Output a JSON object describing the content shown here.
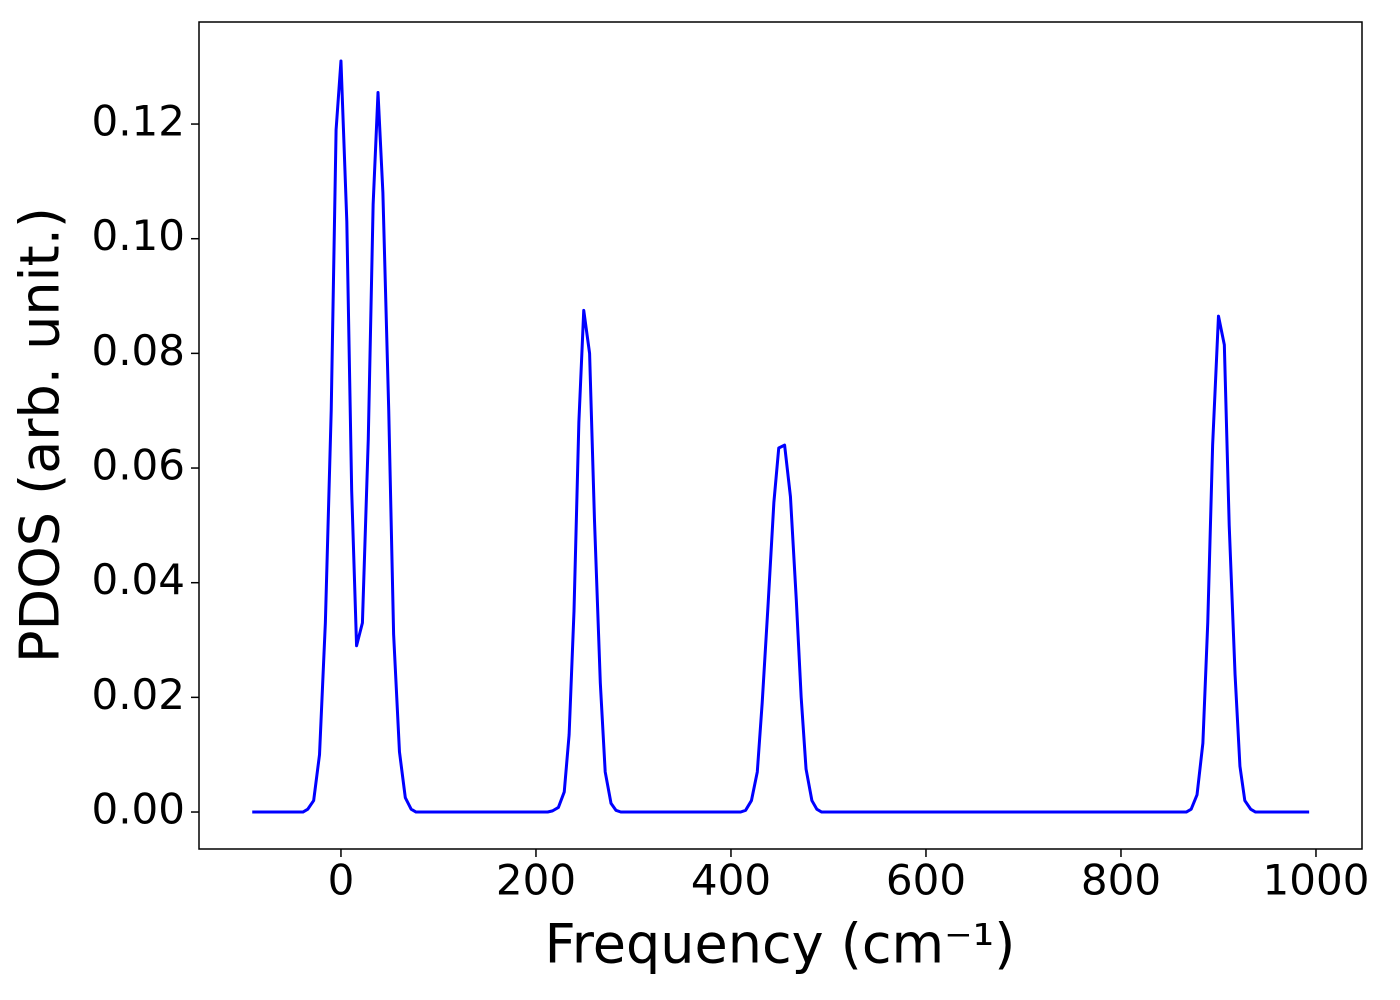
{
  "chart_data": {
    "type": "line",
    "x_label": "Frequency (cm⁻¹)",
    "y_label": "PDOS (arb. unit.)",
    "xlim": [
      -145.6,
      1047.2
    ],
    "ylim": [
      -0.00645,
      0.1378
    ],
    "xticks": [
      0,
      200,
      400,
      600,
      800,
      1000
    ],
    "yticks": [
      {
        "value": 0,
        "label": "0.00"
      },
      {
        "value": 0.02,
        "label": "0.02"
      },
      {
        "value": 0.04,
        "label": "0.04"
      },
      {
        "value": 0.06,
        "label": "0.06"
      },
      {
        "value": 0.08,
        "label": "0.08"
      },
      {
        "value": 0.1,
        "label": "0.10"
      },
      {
        "value": 0.12,
        "label": "0.12"
      }
    ],
    "grid": false,
    "series": [
      {
        "color": "#0000ff",
        "x": [
          -91,
          -39,
          -34,
          -28,
          -22,
          -16,
          -10,
          -5,
          0,
          6,
          11,
          16,
          22,
          28,
          33,
          38,
          43,
          49,
          54,
          60,
          66,
          72,
          77,
          212,
          217,
          223,
          229,
          234,
          239,
          244,
          249,
          255,
          260,
          266,
          271,
          277,
          282,
          287,
          410,
          415,
          421,
          427,
          432,
          438,
          444,
          449,
          455,
          461,
          467,
          472,
          477,
          483,
          488,
          493,
          867,
          872,
          878,
          884,
          889,
          894,
          900,
          906,
          911,
          917,
          922,
          927,
          933,
          938,
          993
        ],
        "values": [
          0,
          0,
          0.0005,
          0.002,
          0.01,
          0.033,
          0.07,
          0.119,
          0.131,
          0.103,
          0.056,
          0.029,
          0.033,
          0.065,
          0.106,
          0.1255,
          0.108,
          0.07,
          0.031,
          0.0105,
          0.0025,
          0.0005,
          0,
          0,
          0.0002,
          0.0008,
          0.0035,
          0.0135,
          0.035,
          0.068,
          0.0875,
          0.08,
          0.051,
          0.0225,
          0.007,
          0.0015,
          0.0003,
          0,
          0,
          0.0003,
          0.002,
          0.007,
          0.019,
          0.036,
          0.054,
          0.0635,
          0.064,
          0.055,
          0.037,
          0.02,
          0.0075,
          0.002,
          0.0005,
          0,
          0,
          0.0005,
          0.003,
          0.012,
          0.033,
          0.064,
          0.0865,
          0.0815,
          0.05,
          0.024,
          0.008,
          0.002,
          0.0005,
          0,
          0
        ]
      }
    ]
  }
}
